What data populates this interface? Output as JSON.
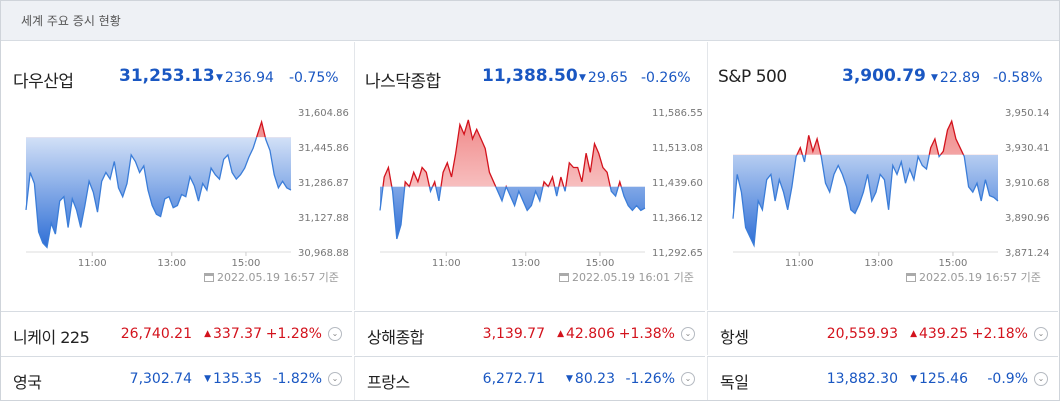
{
  "header": {
    "title": "세계 주요 증시 현황"
  },
  "colors": {
    "up": "#d3131d",
    "down": "#1a57c2"
  },
  "panels": [
    {
      "name": "다우산업",
      "value": "31,253.13",
      "change": "236.94",
      "pct": "-0.75%",
      "dir": "down",
      "timestamp": "2022.05.19 16:57 기준",
      "chart_data": {
        "type": "area",
        "y_ticks": [
          "31,604.86",
          "31,445.86",
          "31,286.87",
          "31,127.88",
          "30,968.88"
        ],
        "y_range": [
          30968.88,
          31604.86
        ],
        "x_ticks": [
          "11:00",
          "13:00",
          "15:00"
        ],
        "baseline": 31490,
        "values": [
          31160,
          31330,
          31280,
          31060,
          31010,
          30990,
          31100,
          31050,
          31200,
          31220,
          31080,
          31210,
          31160,
          31080,
          31180,
          31290,
          31240,
          31150,
          31290,
          31330,
          31300,
          31380,
          31260,
          31220,
          31280,
          31410,
          31380,
          31330,
          31360,
          31250,
          31180,
          31140,
          31130,
          31210,
          31220,
          31170,
          31180,
          31230,
          31220,
          31310,
          31270,
          31200,
          31280,
          31250,
          31350,
          31320,
          31300,
          31390,
          31410,
          31330,
          31300,
          31320,
          31350,
          31400,
          31440,
          31500,
          31560,
          31480,
          31430,
          31320,
          31260,
          31290,
          31260,
          31250
        ]
      }
    },
    {
      "name": "나스닥종합",
      "value": "11,388.50",
      "change": "29.65",
      "pct": "-0.26%",
      "dir": "down",
      "timestamp": "2022.05.19 16:01 기준",
      "chart_data": {
        "type": "area",
        "y_ticks": [
          "11,586.55",
          "11,513.08",
          "11,439.60",
          "11,366.12",
          "11,292.65"
        ],
        "y_range": [
          11292.65,
          11586.55
        ],
        "x_ticks": [
          "11:00",
          "13:00",
          "15:00"
        ],
        "baseline": 11430,
        "values": [
          11380,
          11450,
          11470,
          11420,
          11320,
          11350,
          11440,
          11430,
          11460,
          11440,
          11470,
          11460,
          11420,
          11440,
          11400,
          11460,
          11480,
          11450,
          11500,
          11560,
          11540,
          11570,
          11530,
          11550,
          11530,
          11510,
          11460,
          11440,
          11420,
          11400,
          11430,
          11410,
          11390,
          11420,
          11400,
          11380,
          11390,
          11420,
          11400,
          11440,
          11430,
          11450,
          11410,
          11450,
          11420,
          11480,
          11470,
          11470,
          11440,
          11500,
          11460,
          11520,
          11500,
          11470,
          11460,
          11420,
          11410,
          11440,
          11410,
          11390,
          11380,
          11390,
          11380,
          11385
        ]
      }
    },
    {
      "name": "S&P 500",
      "value": "3,900.79",
      "change": "22.89",
      "pct": "-0.58%",
      "dir": "down",
      "timestamp": "2022.05.19 16:57 기준",
      "chart_data": {
        "type": "area",
        "y_ticks": [
          "3,950.14",
          "3,930.41",
          "3,910.68",
          "3,890.96",
          "3,871.24"
        ],
        "y_range": [
          3871.24,
          3950.14
        ],
        "x_ticks": [
          "11:00",
          "13:00",
          "15:00"
        ],
        "baseline": 3926,
        "values": [
          3890,
          3915,
          3905,
          3885,
          3880,
          3875,
          3900,
          3895,
          3912,
          3915,
          3900,
          3912,
          3905,
          3895,
          3908,
          3925,
          3930,
          3922,
          3937,
          3928,
          3935,
          3925,
          3910,
          3905,
          3915,
          3920,
          3915,
          3908,
          3895,
          3893,
          3898,
          3905,
          3915,
          3900,
          3905,
          3915,
          3912,
          3895,
          3920,
          3915,
          3922,
          3910,
          3918,
          3912,
          3925,
          3920,
          3918,
          3930,
          3935,
          3925,
          3928,
          3940,
          3945,
          3935,
          3930,
          3925,
          3908,
          3905,
          3910,
          3900,
          3912,
          3903,
          3902,
          3900
        ]
      }
    }
  ],
  "rows": [
    [
      {
        "name": "니케이 225",
        "value": "26,740.21",
        "change": "337.37",
        "pct": "+1.28%",
        "dir": "up"
      },
      {
        "name": "상해종합",
        "value": "3,139.77",
        "change": "42.806",
        "pct": "+1.38%",
        "dir": "up"
      },
      {
        "name": "항셍",
        "value": "20,559.93",
        "change": "439.25",
        "pct": "+2.18%",
        "dir": "up"
      }
    ],
    [
      {
        "name": "영국",
        "value": "7,302.74",
        "change": "135.35",
        "pct": "-1.82%",
        "dir": "down"
      },
      {
        "name": "프랑스",
        "value": "6,272.71",
        "change": "80.23",
        "pct": "-1.26%",
        "dir": "down"
      },
      {
        "name": "독일",
        "value": "13,882.30",
        "change": "125.46",
        "pct": "-0.9%",
        "dir": "down"
      }
    ]
  ]
}
